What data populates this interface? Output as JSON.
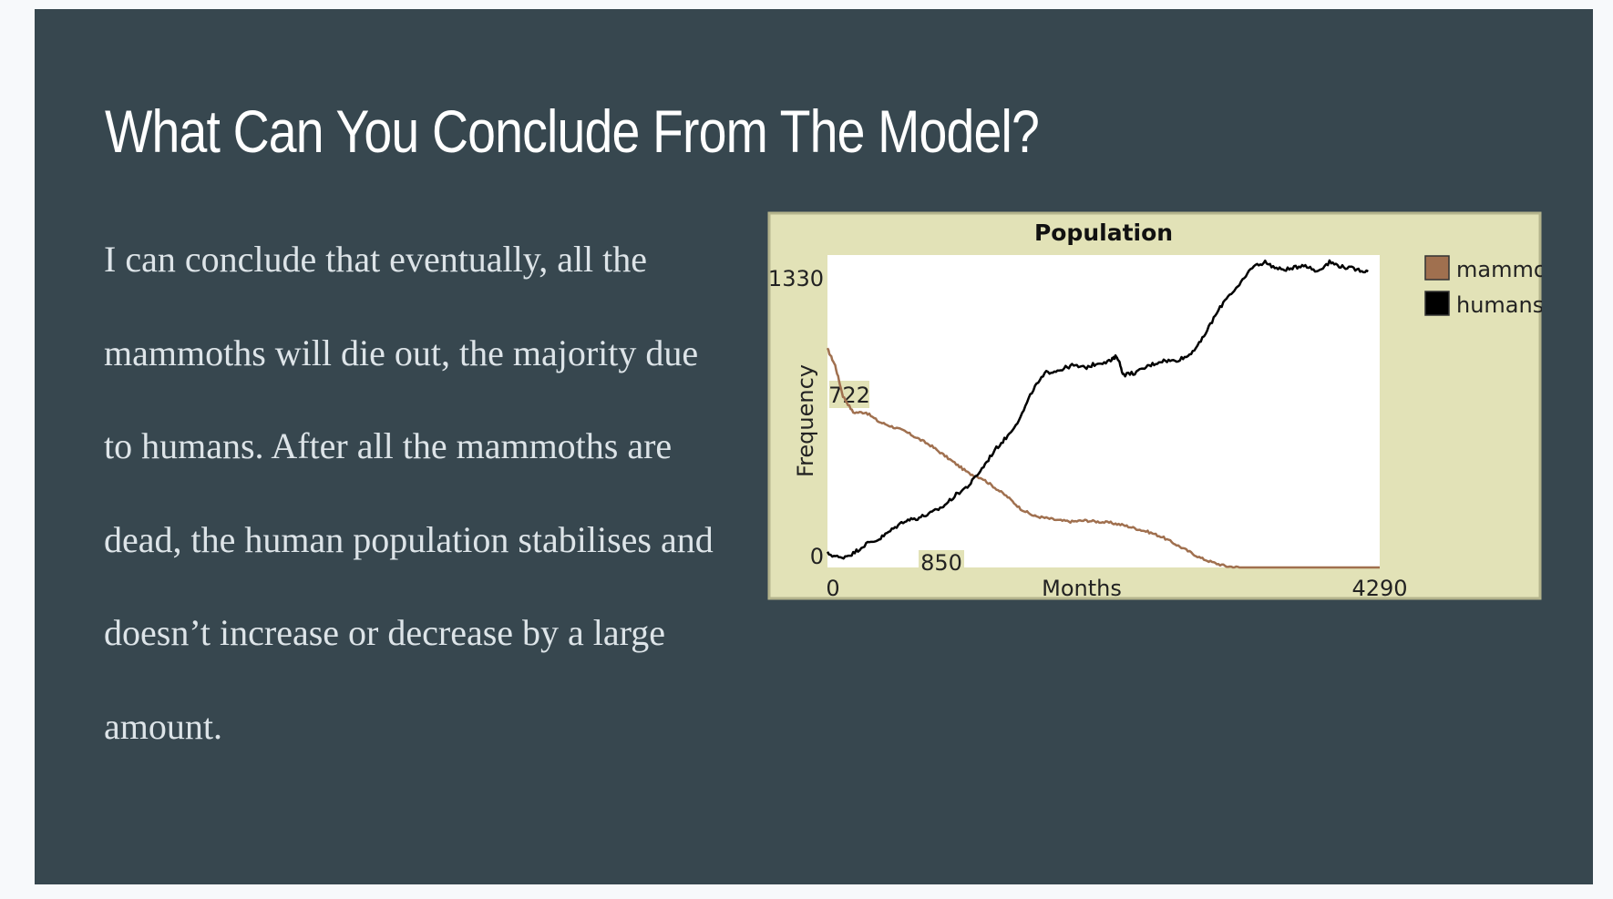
{
  "slide": {
    "title": "What Can You Conclude From The Model?",
    "body_lines": [
      "I can conclude that eventually, all the",
      "mammoths will die out, the majority due",
      "to humans. After all the mammoths are",
      "dead, the human population stabilises and",
      "doesn’t increase or decrease by a large",
      "amount."
    ],
    "background_color": "#37474f",
    "title_color": "#ffffff",
    "body_color": "#dde4e8"
  },
  "chart_data": {
    "type": "line",
    "title": "Population",
    "xlabel": "Months",
    "ylabel": "Frequency",
    "xlim": [
      0,
      4290
    ],
    "ylim": [
      0,
      1330
    ],
    "x_tick_labels": {
      "min": "0",
      "max": "4290"
    },
    "y_tick_labels": {
      "min": "0",
      "max": "1330"
    },
    "annotations": [
      {
        "text": "722",
        "x": 0,
        "y": 722
      },
      {
        "text": "850",
        "x": 850,
        "y": 0
      }
    ],
    "legend_position": "top-right",
    "panel_color": "#e2e2b7",
    "plot_color": "#ffffff",
    "series": [
      {
        "name": "mammoths",
        "color": "#a0704f",
        "x": [
          0,
          60,
          120,
          200,
          300,
          400,
          500,
          600,
          700,
          800,
          900,
          1000,
          1100,
          1200,
          1300,
          1400,
          1500,
          1600,
          1700,
          1800,
          1900,
          2000,
          2100,
          2200,
          2300,
          2400,
          2500,
          2600,
          2700,
          2800,
          2900,
          3000,
          3100,
          3200,
          3300,
          3400,
          3500,
          3600,
          3700,
          3800,
          3900,
          4000,
          4100,
          4200,
          4290
        ],
        "values": [
          930,
          860,
          730,
          660,
          660,
          620,
          600,
          580,
          550,
          520,
          480,
          440,
          400,
          380,
          340,
          300,
          250,
          220,
          210,
          200,
          195,
          200,
          195,
          190,
          180,
          165,
          150,
          130,
          100,
          70,
          40,
          20,
          5,
          0,
          0,
          0,
          0,
          0,
          0,
          0,
          0,
          0,
          0,
          0,
          0
        ]
      },
      {
        "name": "humans",
        "color": "#000000",
        "x": [
          0,
          100,
          200,
          300,
          400,
          500,
          600,
          700,
          800,
          900,
          1000,
          1100,
          1200,
          1300,
          1400,
          1500,
          1600,
          1700,
          1800,
          1900,
          2000,
          2100,
          2200,
          2250,
          2300,
          2400,
          2500,
          2600,
          2700,
          2800,
          2900,
          3000,
          3100,
          3200,
          3300,
          3400,
          3500,
          3600,
          3700,
          3800,
          3900,
          4000,
          4100,
          4200
        ],
        "values": [
          60,
          40,
          60,
          100,
          120,
          160,
          200,
          210,
          230,
          260,
          310,
          350,
          420,
          500,
          560,
          640,
          760,
          830,
          840,
          860,
          850,
          870,
          880,
          900,
          820,
          830,
          860,
          880,
          880,
          900,
          960,
          1060,
          1150,
          1200,
          1280,
          1300,
          1270,
          1270,
          1290,
          1260,
          1300,
          1280,
          1270,
          1260
        ]
      }
    ]
  }
}
